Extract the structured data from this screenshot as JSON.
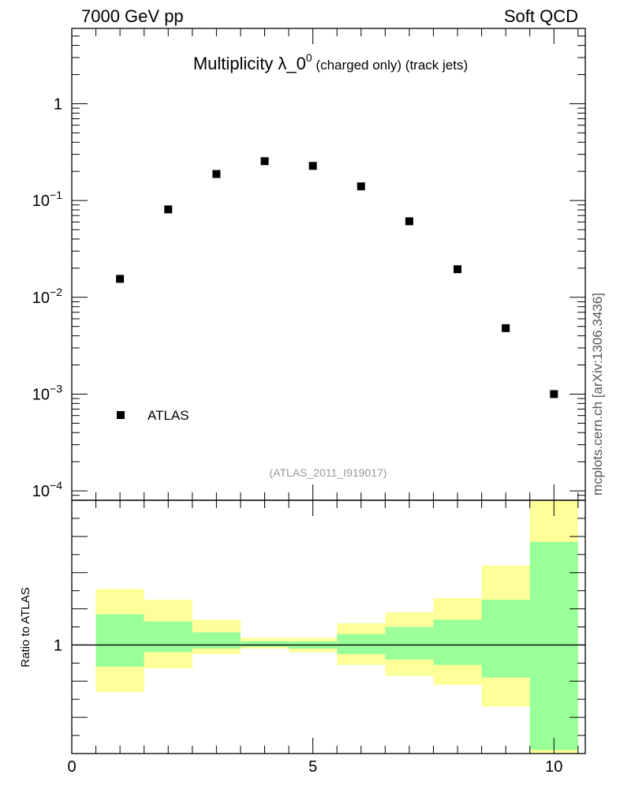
{
  "header": {
    "left": "7000 GeV pp",
    "right": "Soft QCD"
  },
  "side_label": "mcplots.cern.ch [arXiv:1306.3436]",
  "chart_data": {
    "type": "scatter",
    "title_main": "Multiplicity λ_0",
    "title_sup": "0",
    "title_rest": " (charged only) (track jets)",
    "watermark": "(ATLAS_2011_I919017)",
    "legend": [
      {
        "label": "ATLAS",
        "marker": "square",
        "color": "#000000"
      }
    ],
    "yscale": "log",
    "ylim": [
      8e-05,
      6
    ],
    "xlim": [
      0,
      10.65
    ],
    "y_tick_labels": [
      {
        "value": 1,
        "mant": "1",
        "exp": ""
      },
      {
        "value": 0.1,
        "mant": "10",
        "exp": "−1"
      },
      {
        "value": 0.01,
        "mant": "10",
        "exp": "−2"
      },
      {
        "value": 0.001,
        "mant": "10",
        "exp": "−3"
      },
      {
        "value": 0.0001,
        "mant": "10",
        "exp": "−4"
      }
    ],
    "x_tick_labels": [
      {
        "value": 0,
        "label": "0"
      },
      {
        "value": 5,
        "label": "5"
      },
      {
        "value": 10,
        "label": "10"
      }
    ],
    "series": [
      {
        "name": "ATLAS",
        "x": [
          1,
          2,
          3,
          4,
          5,
          6,
          7,
          8,
          9,
          10
        ],
        "y": [
          0.0155,
          0.081,
          0.188,
          0.255,
          0.228,
          0.14,
          0.061,
          0.0195,
          0.0048,
          0.001
        ]
      }
    ],
    "ratio": {
      "ylabel": "Ratio to ATLAS",
      "ylim": [
        0.4,
        1.8
      ],
      "reference": 1,
      "y_tick_labels": [
        {
          "value": 1,
          "label": "1"
        }
      ],
      "bins": [
        {
          "lo": 0.5,
          "hi": 1.5,
          "yellow": [
            0.74,
            1.31
          ],
          "green": [
            0.88,
            1.17
          ]
        },
        {
          "lo": 1.5,
          "hi": 2.5,
          "yellow": [
            0.87,
            1.25
          ],
          "green": [
            0.96,
            1.13
          ]
        },
        {
          "lo": 2.5,
          "hi": 3.5,
          "yellow": [
            0.95,
            1.14
          ],
          "green": [
            0.98,
            1.07
          ]
        },
        {
          "lo": 3.5,
          "hi": 4.5,
          "yellow": [
            0.98,
            1.04
          ],
          "green": [
            0.99,
            1.02
          ]
        },
        {
          "lo": 4.5,
          "hi": 5.5,
          "yellow": [
            0.96,
            1.04
          ],
          "green": [
            0.98,
            1.02
          ]
        },
        {
          "lo": 5.5,
          "hi": 6.5,
          "yellow": [
            0.89,
            1.12
          ],
          "green": [
            0.95,
            1.06
          ]
        },
        {
          "lo": 6.5,
          "hi": 7.5,
          "yellow": [
            0.83,
            1.18
          ],
          "green": [
            0.92,
            1.1
          ]
        },
        {
          "lo": 7.5,
          "hi": 8.5,
          "yellow": [
            0.78,
            1.26
          ],
          "green": [
            0.89,
            1.14
          ]
        },
        {
          "lo": 8.5,
          "hi": 9.5,
          "yellow": [
            0.66,
            1.44
          ],
          "green": [
            0.82,
            1.25
          ]
        },
        {
          "lo": 9.5,
          "hi": 10.5,
          "yellow": [
            0.4,
            1.8
          ],
          "green": [
            0.42,
            1.57
          ]
        }
      ]
    },
    "colors": {
      "yellow": "#ffff99",
      "green": "#99ff99",
      "marker": "#000000"
    }
  }
}
